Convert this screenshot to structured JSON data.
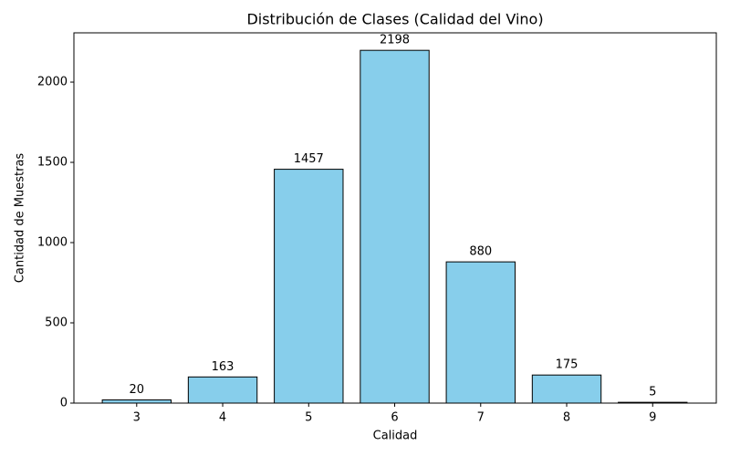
{
  "chart_data": {
    "type": "bar",
    "title": "Distribución de Clases (Calidad del Vino)",
    "x_label": "Calidad",
    "y_label": "Cantidad de Muestras",
    "x": [
      3,
      4,
      5,
      6,
      7,
      8,
      9
    ],
    "values": [
      20,
      163,
      1457,
      2198,
      880,
      175,
      5
    ],
    "color": "#87ceeb",
    "edge_color": "#000000",
    "xlim": [
      2.27,
      9.74
    ],
    "xticks": [
      3,
      4,
      5,
      6,
      7,
      8,
      9
    ],
    "ylim": [
      0,
      2307
    ],
    "yticks": [
      0,
      500,
      1000,
      1500,
      2000
    ]
  }
}
